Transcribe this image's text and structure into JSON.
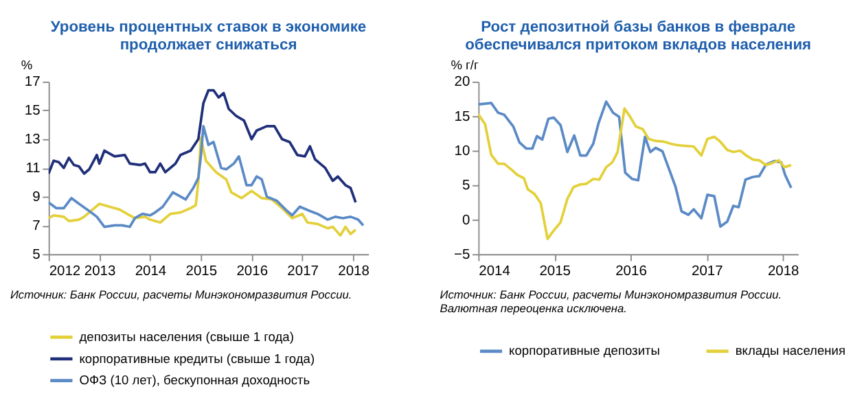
{
  "chart_data": [
    {
      "type": "line",
      "title": [
        "Уровень процентных ставок в экономике",
        "продолжает снижаться"
      ],
      "ylabel": "%",
      "xlim": [
        2012,
        2018.3
      ],
      "xticks": [
        2012,
        2013,
        2014,
        2015,
        2016,
        2017,
        2018
      ],
      "ylim": [
        5,
        17
      ],
      "yticks": [
        5,
        7,
        9,
        11,
        13,
        15,
        17
      ],
      "grid": false,
      "legend": "bottom",
      "annotations": [
        "Источник: Банк России, расчеты Минэкономразвития России."
      ],
      "series": [
        {
          "name": "депозиты населения (свыше 1 года)",
          "color": "#e3d03a",
          "x": [
            2012,
            2012.1,
            2012.3,
            2012.4,
            2012.6,
            2012.7,
            2012.9,
            2013.0,
            2013.2,
            2013.4,
            2013.6,
            2013.7,
            2013.9,
            2014.0,
            2014.2,
            2014.4,
            2014.6,
            2014.8,
            2014.9,
            2014.95,
            2015.0,
            2015.1,
            2015.3,
            2015.5,
            2015.6,
            2015.8,
            2016.0,
            2016.2,
            2016.4,
            2016.6,
            2016.8,
            2017.0,
            2017.1,
            2017.3,
            2017.5,
            2017.6,
            2017.75,
            2017.85,
            2017.95,
            2018.05
          ],
          "values": [
            7.5,
            7.7,
            7.6,
            7.3,
            7.4,
            7.6,
            8.2,
            8.5,
            8.3,
            8.1,
            7.7,
            7.5,
            7.6,
            7.4,
            7.2,
            7.8,
            7.9,
            8.2,
            8.4,
            10,
            13.1,
            11.5,
            10.7,
            10.2,
            9.3,
            8.9,
            9.4,
            8.9,
            8.8,
            8.2,
            7.5,
            7.8,
            7.2,
            7.1,
            6.8,
            6.9,
            6.3,
            6.9,
            6.4,
            6.7
          ]
        },
        {
          "name": "корпоративные кредиты (свыше 1 года)",
          "color": "#1f2f7a",
          "x": [
            2012,
            2012.1,
            2012.2,
            2012.3,
            2012.4,
            2012.5,
            2012.6,
            2012.7,
            2012.8,
            2012.95,
            2013.0,
            2013.1,
            2013.3,
            2013.5,
            2013.6,
            2013.8,
            2013.9,
            2014.0,
            2014.1,
            2014.2,
            2014.3,
            2014.5,
            2014.6,
            2014.8,
            2014.95,
            2015.05,
            2015.15,
            2015.25,
            2015.35,
            2015.45,
            2015.55,
            2015.7,
            2015.85,
            2016.0,
            2016.1,
            2016.3,
            2016.45,
            2016.6,
            2016.75,
            2016.9,
            2017.05,
            2017.15,
            2017.25,
            2017.45,
            2017.6,
            2017.7,
            2017.85,
            2017.95,
            2018.05
          ],
          "values": [
            10.6,
            11.5,
            11.4,
            11.0,
            11.7,
            11.2,
            11.1,
            10.6,
            10.9,
            11.9,
            11.3,
            12.2,
            11.8,
            11.9,
            11.3,
            11.2,
            11.3,
            10.7,
            10.7,
            11.3,
            10.7,
            11.3,
            11.9,
            12.2,
            13.0,
            15.5,
            16.4,
            16.4,
            15.9,
            16.2,
            15.1,
            14.6,
            14.3,
            13.0,
            13.6,
            13.9,
            13.9,
            13.0,
            12.8,
            11.9,
            11.8,
            12.5,
            11.6,
            11.0,
            10.1,
            10.4,
            9.8,
            9.6,
            8.6
          ]
        },
        {
          "name": "ОФЗ (10 лет), бескупонная доходность",
          "color": "#5b8ac6",
          "x": [
            2012,
            2012.15,
            2012.3,
            2012.45,
            2012.6,
            2012.8,
            2012.95,
            2013.1,
            2013.3,
            2013.45,
            2013.6,
            2013.7,
            2013.85,
            2014.0,
            2014.1,
            2014.25,
            2014.45,
            2014.55,
            2014.7,
            2014.85,
            2014.95,
            2015.0,
            2015.05,
            2015.15,
            2015.25,
            2015.4,
            2015.5,
            2015.65,
            2015.75,
            2015.9,
            2016.0,
            2016.1,
            2016.2,
            2016.3,
            2016.5,
            2016.7,
            2016.8,
            2016.95,
            2017.15,
            2017.3,
            2017.5,
            2017.65,
            2017.8,
            2017.95,
            2018.1,
            2018.2
          ],
          "values": [
            8.6,
            8.2,
            8.2,
            8.9,
            8.5,
            8.0,
            7.6,
            6.9,
            7.0,
            7.0,
            6.9,
            7.5,
            7.8,
            7.7,
            7.9,
            8.3,
            9.3,
            9.1,
            8.8,
            9.6,
            10.3,
            11.8,
            13.9,
            12.6,
            12.8,
            11.0,
            10.9,
            11.3,
            11.8,
            9.8,
            9.8,
            10.4,
            10.2,
            9.0,
            8.7,
            8.0,
            7.7,
            8.3,
            8.0,
            7.8,
            7.4,
            7.6,
            7.5,
            7.6,
            7.4,
            7.0
          ]
        }
      ]
    },
    {
      "type": "line",
      "title": [
        "Рост депозитной базы банков в феврале",
        "обеспечивался притоком вкладов населения"
      ],
      "ylabel": "% г/г",
      "xlim": [
        2014,
        2018.2
      ],
      "xticks": [
        2014,
        2015,
        2016,
        2017,
        2018
      ],
      "ylim": [
        -5,
        20
      ],
      "yticks": [
        -5,
        0,
        5,
        10,
        15,
        20
      ],
      "grid": false,
      "legend": "bottom",
      "annotations": [
        "Источник: Банк России, расчеты Минэкономразвития России.",
        "Валютная переоценка исключена."
      ],
      "series": [
        {
          "name": "корпоративные депозиты",
          "color": "#5b8ac6",
          "x": [
            2014,
            2014.17,
            2014.26,
            2014.34,
            2014.46,
            2014.54,
            2014.63,
            2014.71,
            2014.77,
            2014.84,
            2014.92,
            2014.99,
            2015.08,
            2015.17,
            2015.26,
            2015.34,
            2015.42,
            2015.51,
            2015.58,
            2015.68,
            2015.77,
            2015.85,
            2015.93,
            2016.02,
            2016.1,
            2016.19,
            2016.26,
            2016.33,
            2016.42,
            2016.5,
            2016.59,
            2016.67,
            2016.76,
            2016.83,
            2016.93,
            2017.01,
            2017.1,
            2017.18,
            2017.27,
            2017.35,
            2017.42,
            2017.51,
            2017.61,
            2017.69,
            2017.78,
            2017.89,
            2017.98,
            2018.03,
            2018.11
          ],
          "values": [
            16.7,
            16.9,
            15.5,
            15.2,
            13.5,
            11.2,
            10.3,
            10.3,
            12.1,
            11.6,
            14.6,
            14.8,
            13.7,
            9.8,
            12.2,
            9.3,
            9.3,
            11,
            14,
            17.1,
            15.5,
            14.9,
            6.8,
            5.9,
            5.7,
            12,
            9.8,
            10.4,
            9.9,
            7.5,
            4.8,
            1.2,
            0.7,
            1.5,
            0.2,
            3.6,
            3.4,
            -1,
            -0.3,
            2,
            1.8,
            5.8,
            6.2,
            6.3,
            8,
            8.5,
            8.3,
            6.5,
            4.6
          ]
        },
        {
          "name": "вклады населения",
          "color": "#e3d03a",
          "x": [
            2014,
            2014.09,
            2014.17,
            2014.26,
            2014.34,
            2014.43,
            2014.51,
            2014.6,
            2014.65,
            2014.74,
            2014.82,
            2014.91,
            2014.99,
            2015.08,
            2015.17,
            2015.25,
            2015.34,
            2015.42,
            2015.51,
            2015.59,
            2015.68,
            2015.76,
            2015.83,
            2015.92,
            2015.99,
            2016.07,
            2016.16,
            2016.24,
            2016.33,
            2016.44,
            2016.53,
            2016.61,
            2016.7,
            2016.83,
            2016.93,
            2017.01,
            2017.1,
            2017.18,
            2017.27,
            2017.35,
            2017.44,
            2017.52,
            2017.61,
            2017.69,
            2017.78,
            2017.86,
            2017.95,
            2018.02,
            2018.11
          ],
          "values": [
            15.3,
            13.8,
            9.4,
            8.1,
            8.1,
            7.3,
            6.5,
            6,
            4.4,
            3.7,
            2.4,
            -2.8,
            -1.6,
            -0.4,
            3,
            4.7,
            5.1,
            5.2,
            5.9,
            5.8,
            7.6,
            8.3,
            9.8,
            16.1,
            15,
            13.5,
            13.1,
            11.7,
            11.4,
            11.3,
            11,
            10.8,
            10.7,
            10.6,
            9.3,
            11.7,
            12,
            11.3,
            10.1,
            9.8,
            10,
            9.3,
            8.7,
            8.6,
            7.9,
            8.2,
            8.6,
            7.6,
            7.9
          ]
        }
      ]
    }
  ]
}
